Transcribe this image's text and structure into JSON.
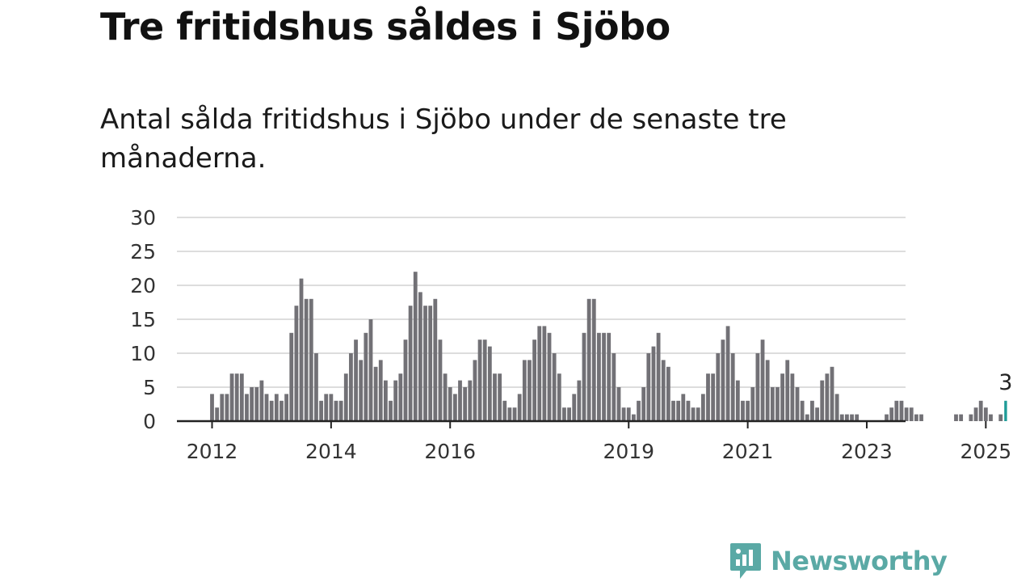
{
  "title": "Tre fritidshus såldes i Sjöbo",
  "subtitle": "Antal sålda fritidshus i Sjöbo under de senaste tre månaderna.",
  "brand": {
    "name": "Newsworthy",
    "icon": "newsworthy-logo-icon"
  },
  "colors": {
    "bar": "#727176",
    "highlight": "#1f9b98",
    "grid": "#dddddd",
    "axis": "#222222",
    "brand": "#5aa9a5"
  },
  "chart_data": {
    "type": "bar",
    "title": "",
    "xlabel": "",
    "ylabel": "",
    "ylim": [
      0,
      30
    ],
    "yticks": [
      0,
      5,
      10,
      15,
      20,
      25,
      30
    ],
    "xticks": [
      {
        "label": "2012",
        "at": "2012-01"
      },
      {
        "label": "2014",
        "at": "2014-01"
      },
      {
        "label": "2016",
        "at": "2016-01"
      },
      {
        "label": "2019",
        "at": "2019-01"
      },
      {
        "label": "2021",
        "at": "2021-01"
      },
      {
        "label": "2023",
        "at": "2023-01"
      },
      {
        "label": "2025",
        "at": "2025-01"
      }
    ],
    "grid": true,
    "start": "2012-01",
    "values": [
      4,
      2,
      4,
      4,
      7,
      7,
      7,
      4,
      5,
      5,
      6,
      4,
      3,
      4,
      3,
      4,
      13,
      17,
      21,
      18,
      18,
      10,
      3,
      4,
      4,
      3,
      3,
      7,
      10,
      12,
      9,
      13,
      15,
      8,
      9,
      6,
      3,
      6,
      7,
      12,
      17,
      22,
      19,
      17,
      17,
      18,
      12,
      7,
      5,
      4,
      6,
      5,
      6,
      9,
      12,
      12,
      11,
      7,
      7,
      3,
      2,
      2,
      4,
      9,
      9,
      12,
      14,
      14,
      13,
      10,
      7,
      2,
      2,
      4,
      6,
      13,
      18,
      18,
      13,
      13,
      13,
      10,
      5,
      2,
      2,
      1,
      3,
      5,
      10,
      11,
      13,
      9,
      8,
      3,
      3,
      4,
      3,
      2,
      2,
      4,
      7,
      7,
      10,
      12,
      14,
      10,
      6,
      3,
      3,
      5,
      10,
      12,
      9,
      5,
      5,
      7,
      9,
      7,
      5,
      3,
      1,
      3,
      2,
      6,
      7,
      8,
      4,
      1,
      1,
      1,
      1,
      0,
      0,
      0,
      0,
      0,
      1,
      2,
      3,
      3,
      2,
      2,
      1,
      1,
      0,
      0,
      0,
      0,
      0,
      0,
      1,
      1,
      0,
      1,
      2,
      3,
      2,
      1,
      0,
      1,
      3
    ],
    "highlight_last": true,
    "last_label": "3"
  }
}
